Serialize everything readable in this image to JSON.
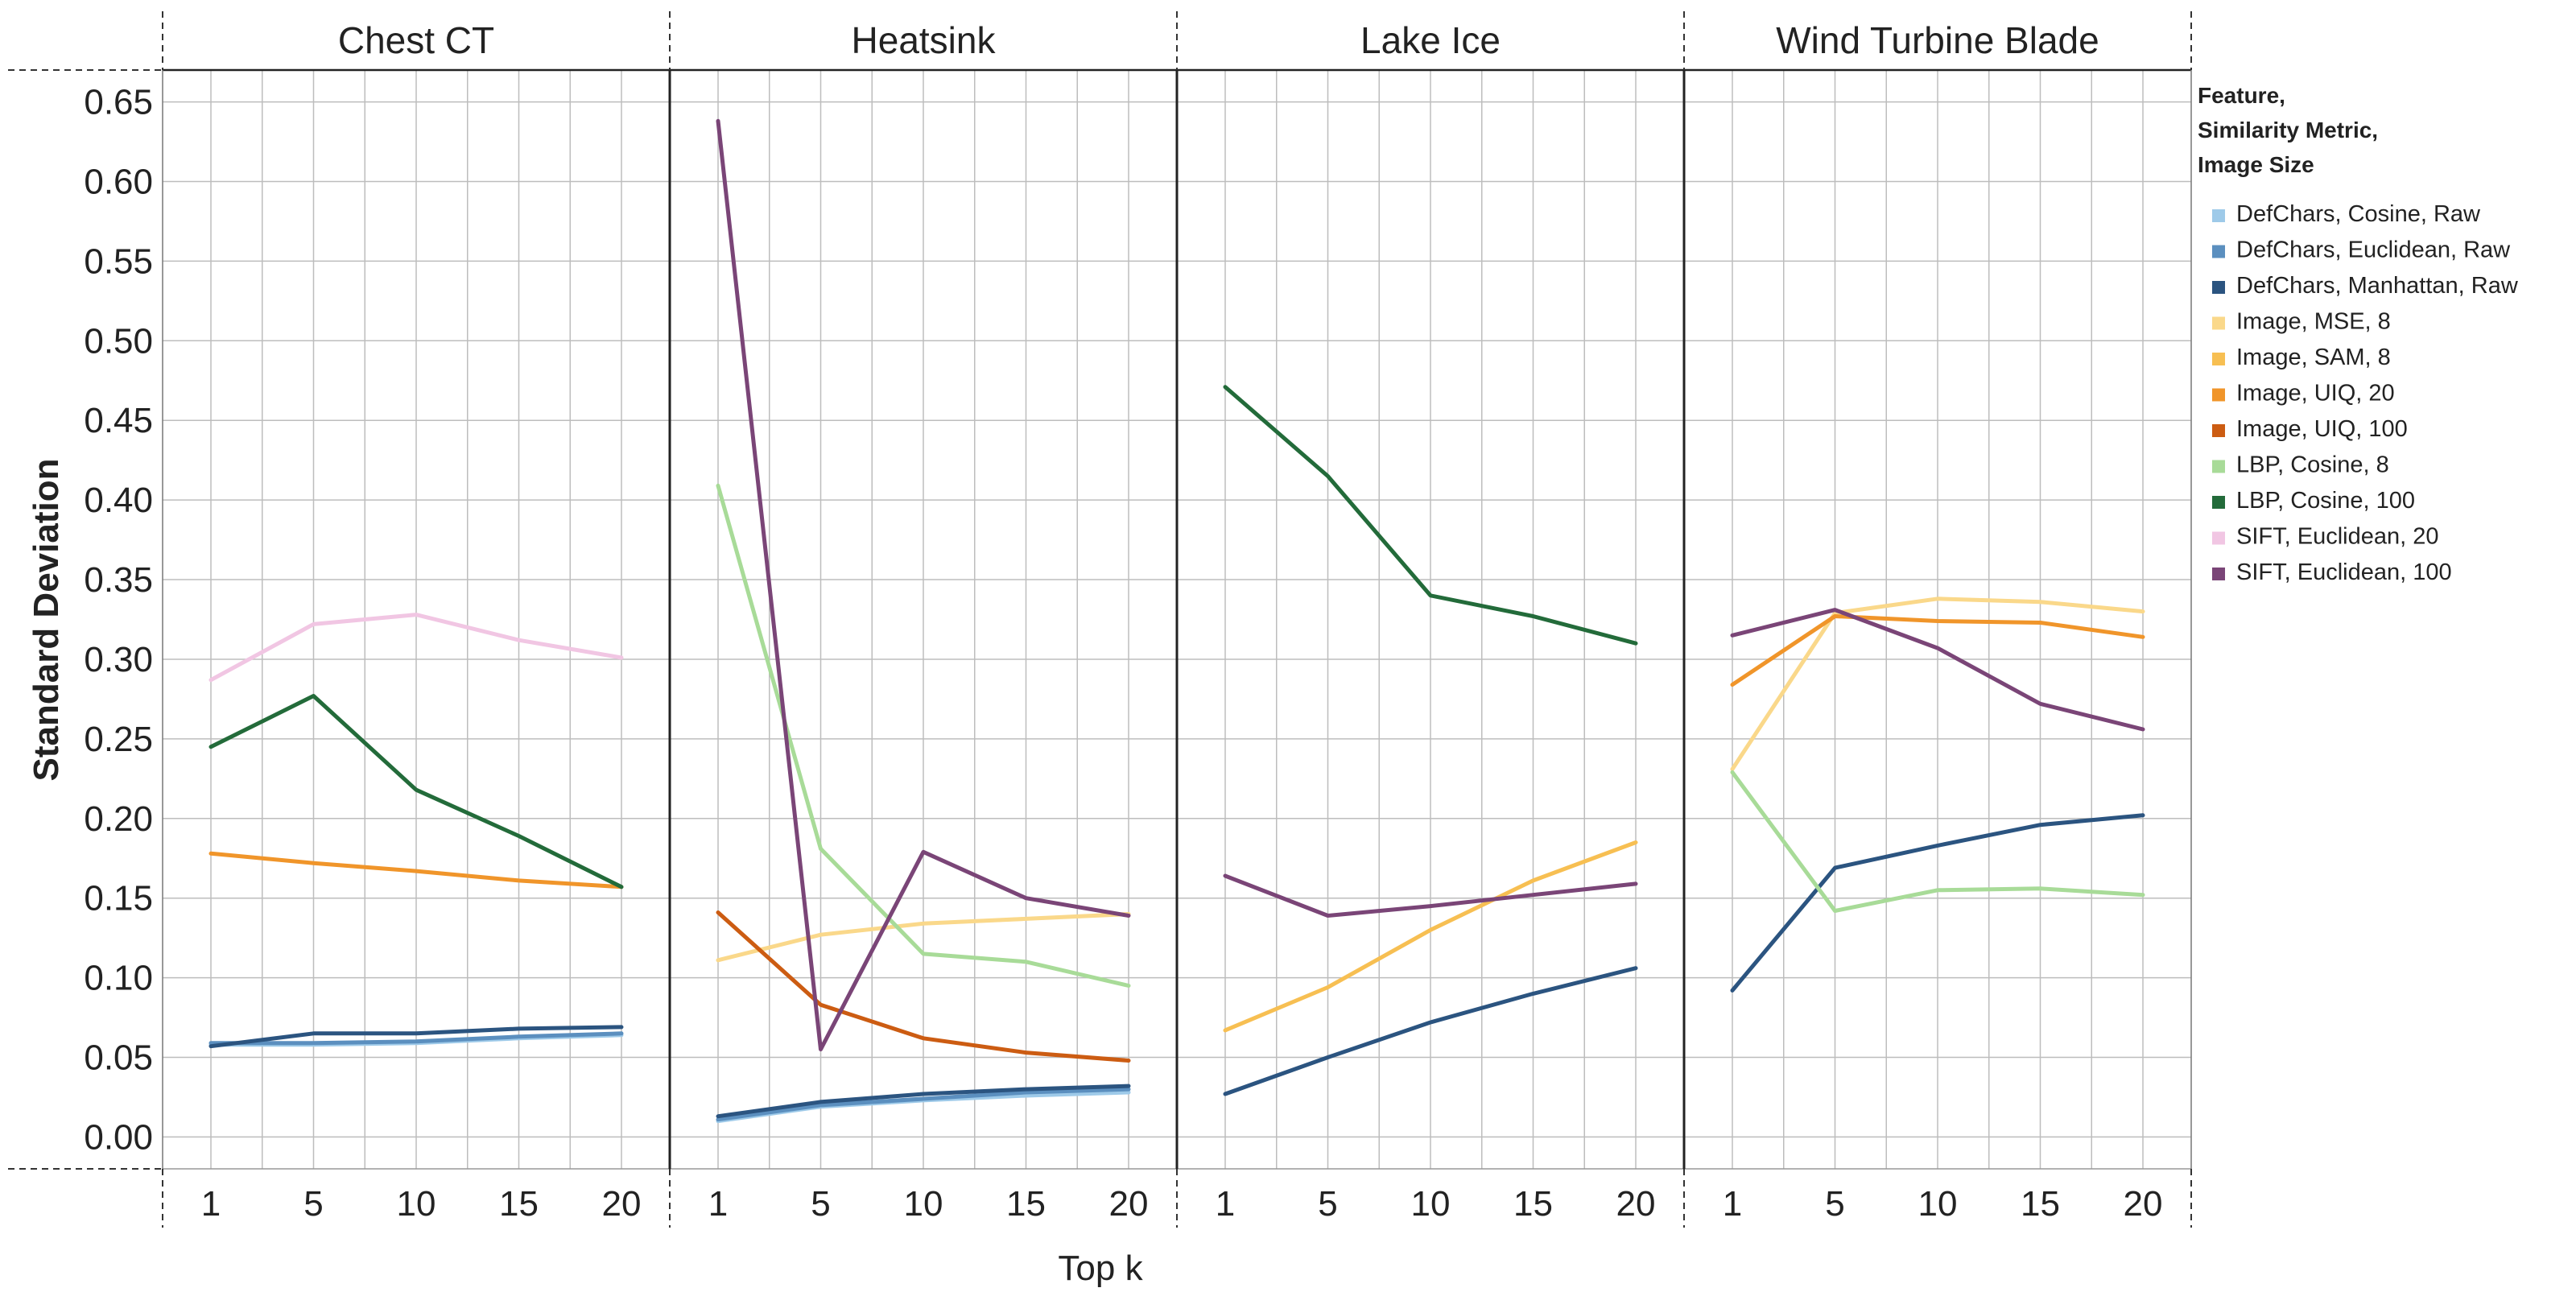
{
  "chart_data": {
    "type": "line",
    "facets": [
      "Chest CT",
      "Heatsink",
      "Lake Ice",
      "Wind Turbine Blade"
    ],
    "x": [
      1,
      5,
      10,
      15,
      20
    ],
    "x_tick_labels": [
      "1",
      "5",
      "10",
      "15",
      "20"
    ],
    "xlabel": "Top k",
    "ylabel": "Standard Deviation",
    "ylim": [
      -0.02,
      0.67
    ],
    "y_ticks": [
      0.0,
      0.05,
      0.1,
      0.15,
      0.2,
      0.25,
      0.3,
      0.35,
      0.4,
      0.45,
      0.5,
      0.55,
      0.6,
      0.65
    ],
    "y_tick_labels": [
      "0.00",
      "0.05",
      "0.10",
      "0.15",
      "0.20",
      "0.25",
      "0.30",
      "0.35",
      "0.40",
      "0.45",
      "0.50",
      "0.55",
      "0.60",
      "0.65"
    ],
    "grid": true,
    "legend": {
      "placement": "right",
      "title_lines": [
        "Feature,",
        "Similarity Metric,",
        "Image Size"
      ]
    },
    "series": [
      {
        "name": "DefChars, Cosine, Raw",
        "color": "#9ecae9",
        "values": {
          "Chest CT": [
            0.058,
            0.058,
            0.059,
            0.062,
            0.064
          ],
          "Heatsink": [
            0.01,
            0.019,
            0.023,
            0.026,
            0.028
          ],
          "Lake Ice": null,
          "Wind Turbine Blade": null
        }
      },
      {
        "name": "DefChars, Euclidean, Raw",
        "color": "#5b8fbf",
        "values": {
          "Chest CT": [
            0.059,
            0.059,
            0.06,
            0.063,
            0.065
          ],
          "Heatsink": [
            0.011,
            0.02,
            0.024,
            0.028,
            0.03
          ],
          "Lake Ice": null,
          "Wind Turbine Blade": null
        }
      },
      {
        "name": "DefChars, Manhattan, Raw",
        "color": "#2b5480",
        "values": {
          "Chest CT": [
            0.057,
            0.065,
            0.065,
            0.068,
            0.069
          ],
          "Heatsink": [
            0.013,
            0.022,
            0.027,
            0.03,
            0.032
          ],
          "Lake Ice": [
            0.027,
            0.05,
            0.072,
            0.09,
            0.106
          ],
          "Wind Turbine Blade": [
            0.092,
            0.169,
            0.183,
            0.196,
            0.202
          ]
        }
      },
      {
        "name": "Image, MSE, 8",
        "color": "#fad88a",
        "values": {
          "Chest CT": null,
          "Heatsink": [
            0.111,
            0.127,
            0.134,
            0.137,
            0.14
          ],
          "Lake Ice": null,
          "Wind Turbine Blade": [
            0.231,
            0.329,
            0.338,
            0.336,
            0.33
          ]
        }
      },
      {
        "name": "Image, SAM, 8",
        "color": "#f7bf52",
        "values": {
          "Chest CT": null,
          "Heatsink": null,
          "Lake Ice": [
            0.067,
            0.094,
            0.13,
            0.161,
            0.185
          ],
          "Wind Turbine Blade": null
        }
      },
      {
        "name": "Image, UIQ, 20",
        "color": "#f0952a",
        "values": {
          "Chest CT": [
            0.178,
            0.172,
            0.167,
            0.161,
            0.157
          ],
          "Heatsink": null,
          "Lake Ice": null,
          "Wind Turbine Blade": [
            0.284,
            0.327,
            0.324,
            0.323,
            0.314
          ]
        }
      },
      {
        "name": "Image, UIQ, 100",
        "color": "#cc5c12",
        "values": {
          "Chest CT": null,
          "Heatsink": [
            0.141,
            0.083,
            0.062,
            0.053,
            0.048
          ],
          "Lake Ice": null,
          "Wind Turbine Blade": null
        }
      },
      {
        "name": "LBP, Cosine, 8",
        "color": "#a8db98",
        "values": {
          "Chest CT": null,
          "Heatsink": [
            0.409,
            0.181,
            0.115,
            0.11,
            0.095
          ],
          "Lake Ice": null,
          "Wind Turbine Blade": [
            0.229,
            0.142,
            0.155,
            0.156,
            0.152
          ]
        }
      },
      {
        "name": "LBP, Cosine, 100",
        "color": "#236b3a",
        "values": {
          "Chest CT": [
            0.245,
            0.277,
            0.218,
            0.189,
            0.157
          ],
          "Heatsink": null,
          "Lake Ice": [
            0.471,
            0.415,
            0.34,
            0.327,
            0.31
          ],
          "Wind Turbine Blade": null
        }
      },
      {
        "name": "SIFT, Euclidean, 20",
        "color": "#f1c6e3",
        "values": {
          "Chest CT": [
            0.287,
            0.322,
            0.328,
            0.312,
            0.301
          ],
          "Heatsink": null,
          "Lake Ice": null,
          "Wind Turbine Blade": null
        }
      },
      {
        "name": "SIFT, Euclidean, 100",
        "color": "#7a4577",
        "values": {
          "Chest CT": null,
          "Heatsink": [
            0.638,
            0.055,
            0.179,
            0.15,
            0.139
          ],
          "Lake Ice": [
            0.164,
            0.139,
            0.145,
            0.152,
            0.159
          ],
          "Wind Turbine Blade": [
            0.315,
            0.331,
            0.307,
            0.272,
            0.256
          ]
        }
      }
    ]
  }
}
